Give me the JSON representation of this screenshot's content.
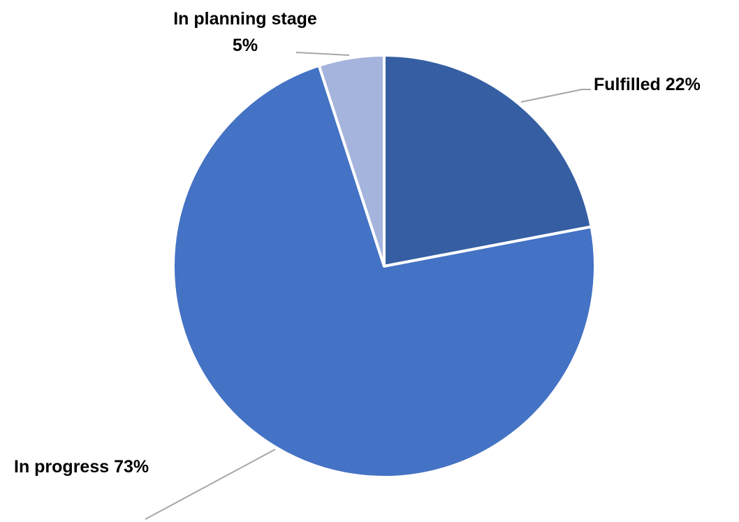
{
  "chart_data": {
    "type": "pie",
    "slices": [
      {
        "label": "Fulfilled",
        "value": 22,
        "display": "Fulfilled 22%",
        "color": "#365fa3"
      },
      {
        "label": "In progress",
        "value": 73,
        "display": "In progress 73%",
        "color": "#4472c4"
      },
      {
        "label": "In planning stage",
        "value": 5,
        "display": [
          "In planning stage",
          "5%"
        ],
        "color": "#a5b4dc"
      }
    ],
    "start_angle_deg": 0,
    "direction": "clockwise",
    "legend": "none",
    "grid": false
  }
}
